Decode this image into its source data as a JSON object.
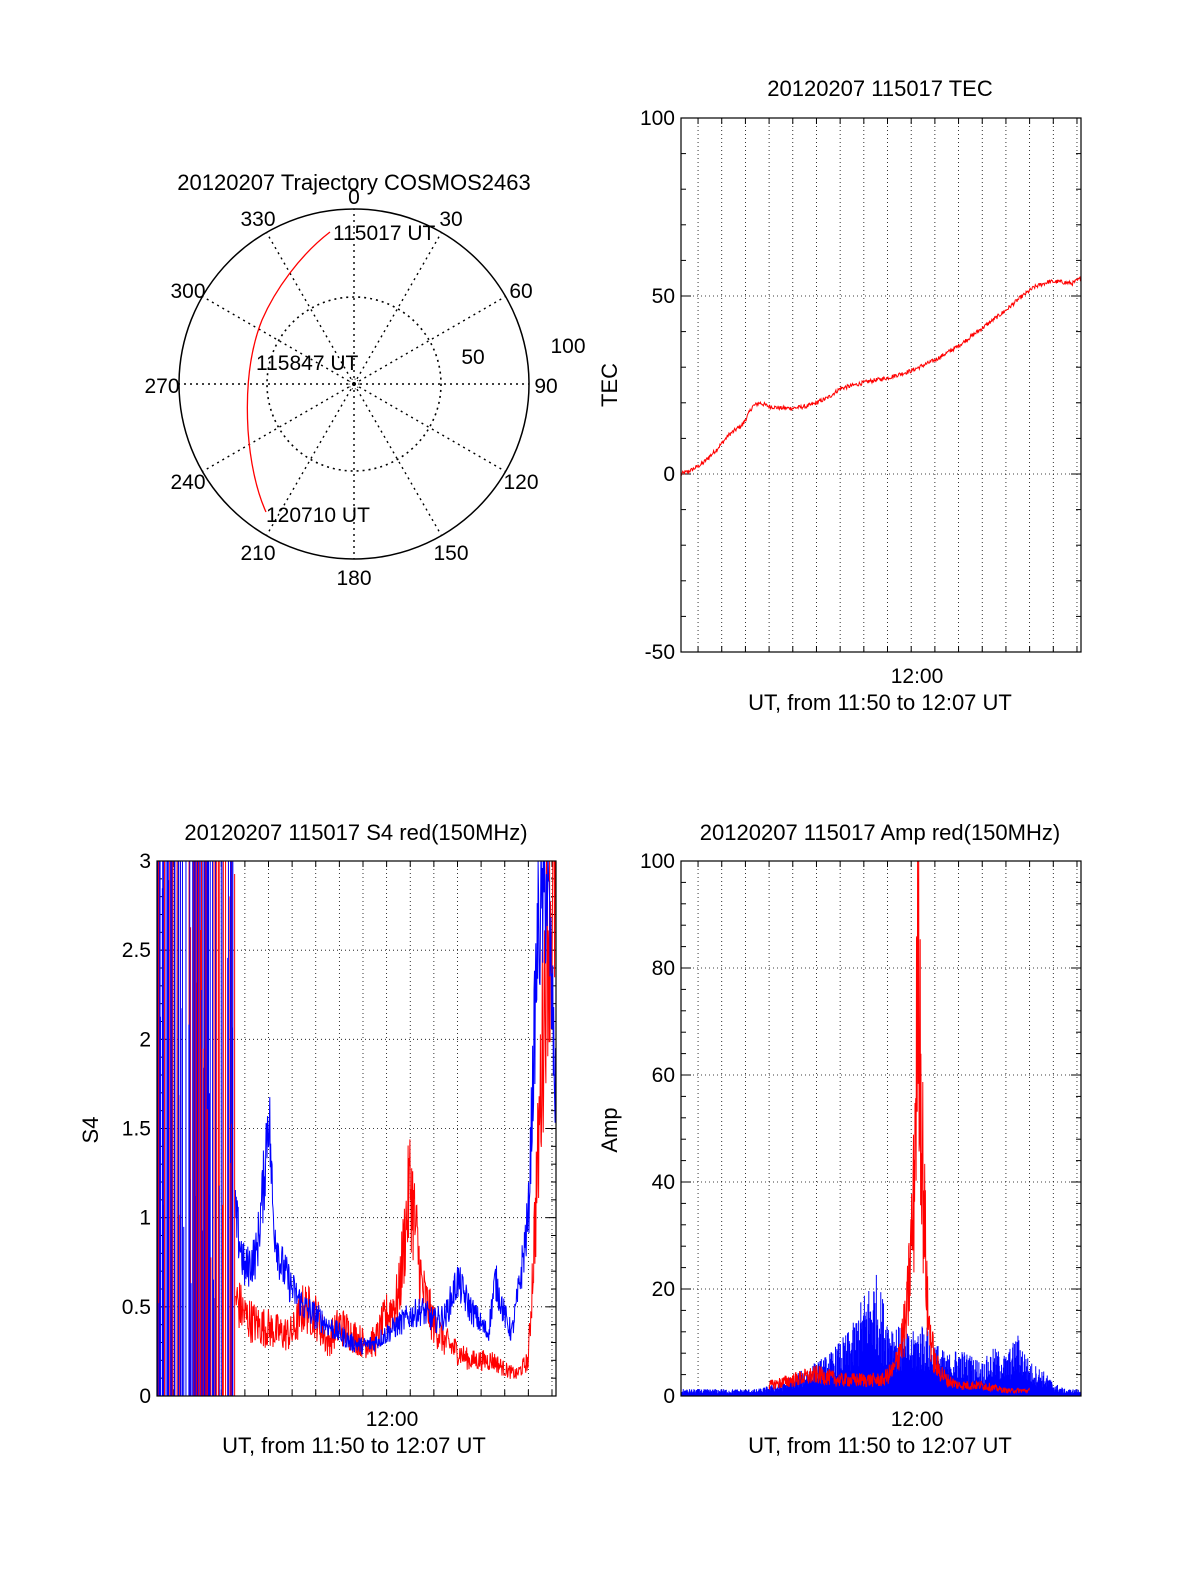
{
  "colors": {
    "red": "#ff0000",
    "blue": "#0000ff",
    "axis": "#000000",
    "grid": "#000000"
  },
  "polar": {
    "title": "20120207 Trajectory COSMOS2463",
    "angle_labels": [
      "0",
      "30",
      "60",
      "90",
      "120",
      "150",
      "180",
      "210",
      "240",
      "270",
      "300",
      "330"
    ],
    "radius_labels": [
      "100",
      "50"
    ],
    "annotations": [
      "115017 UT",
      "115847 UT",
      "120710 UT"
    ]
  },
  "chart_data": [
    {
      "type": "line",
      "title": "20120207 115017 TEC",
      "xlabel": "UT, from 11:50 to 12:07 UT",
      "ylabel": "TEC",
      "xlim": [
        710.28,
        727.17
      ],
      "ylim": [
        -50,
        100
      ],
      "x_tick_labels": [
        {
          "x": 720,
          "label": "12:00"
        }
      ],
      "y_ticks": [
        -50,
        0,
        50,
        100
      ],
      "grid": true,
      "series": [
        {
          "color": "#ff0000",
          "x": [
            710.28,
            710.7,
            711.2,
            711.8,
            712.3,
            712.9,
            713.3,
            713.6,
            714.0,
            714.5,
            715.0,
            715.6,
            716.0,
            716.5,
            717.0,
            717.6,
            718.2,
            719.0,
            720.0,
            721.0,
            722.0,
            723.0,
            724.0,
            724.6,
            725.2,
            725.8,
            726.3,
            726.8,
            727.17
          ],
          "y": [
            0,
            1,
            3,
            7,
            11,
            14,
            19,
            20,
            19,
            18.5,
            18.5,
            19,
            20,
            21.5,
            24,
            25,
            26,
            27,
            29,
            32,
            36,
            41,
            46,
            49.5,
            52.5,
            54,
            54,
            53.5,
            55
          ]
        }
      ]
    },
    {
      "type": "line",
      "title": "20120207 115017 S4 red(150MHz)",
      "xlabel": "UT, from 11:50 to 12:07 UT",
      "ylabel": "S4",
      "xlim": [
        710.28,
        727.17
      ],
      "ylim": [
        0,
        3
      ],
      "x_tick_labels": [
        {
          "x": 720,
          "label": "12:00"
        }
      ],
      "y_ticks": [
        0,
        0.5,
        1,
        1.5,
        2,
        2.5,
        3
      ],
      "y_tick_labels": [
        "0",
        "0.5",
        "1",
        "1.5",
        "2",
        "2.5",
        "3"
      ],
      "grid": true,
      "series": [
        {
          "color": "#0000ff",
          "x": [
            713.6,
            714.0,
            714.5,
            714.8,
            715.0,
            715.2,
            715.5,
            716.0,
            716.5,
            717.0,
            717.5,
            718.0,
            718.5,
            719.0,
            719.5,
            720.0,
            720.5,
            721.0,
            721.5,
            722.0,
            722.5,
            723.0,
            723.5,
            724.0,
            724.3,
            724.6,
            725.0,
            725.3,
            725.6,
            726.0,
            726.4,
            726.8,
            727.17
          ],
          "y": [
            1.0,
            0.7,
            0.8,
            1.2,
            1.65,
            1.0,
            0.75,
            0.6,
            0.5,
            0.45,
            0.4,
            0.35,
            0.3,
            0.28,
            0.3,
            0.35,
            0.4,
            0.45,
            0.48,
            0.42,
            0.45,
            0.65,
            0.5,
            0.4,
            0.35,
            0.65,
            0.45,
            0.35,
            0.6,
            1.0,
            2.6,
            2.9,
            1.6
          ]
        },
        {
          "color": "#ff0000",
          "x": [
            713.6,
            714.0,
            714.5,
            715.0,
            715.5,
            716.0,
            716.5,
            717.0,
            717.5,
            718.0,
            718.5,
            719.0,
            719.5,
            720.0,
            720.5,
            721.0,
            721.5,
            722.0,
            722.5,
            723.0,
            723.5,
            724.0,
            724.5,
            725.0,
            725.5,
            726.0,
            726.4,
            726.8,
            727.17
          ],
          "y": [
            0.55,
            0.45,
            0.4,
            0.38,
            0.35,
            0.35,
            0.5,
            0.45,
            0.3,
            0.4,
            0.35,
            0.3,
            0.3,
            0.45,
            0.55,
            1.2,
            0.6,
            0.4,
            0.3,
            0.25,
            0.2,
            0.2,
            0.2,
            0.15,
            0.12,
            0.2,
            1.3,
            2.7,
            2.9
          ]
        }
      ]
    },
    {
      "type": "line",
      "title": "20120207 115017 Amp red(150MHz)",
      "xlabel": "UT, from 11:50 to 12:07 UT",
      "ylabel": "Amp",
      "xlim": [
        710.28,
        727.17
      ],
      "ylim": [
        0,
        100
      ],
      "x_tick_labels": [
        {
          "x": 720,
          "label": "12:00"
        }
      ],
      "y_ticks": [
        0,
        20,
        40,
        60,
        80,
        100
      ],
      "grid": true,
      "series": [
        {
          "color": "#0000ff",
          "x": [
            710.3,
            711.5,
            712.5,
            713.5,
            714.5,
            715.5,
            716.5,
            717.5,
            718.0,
            718.5,
            719.0,
            719.5,
            720.0,
            720.5,
            721.0,
            721.5,
            722.0,
            722.5,
            723.0,
            723.5,
            724.0,
            724.5,
            725.0,
            725.5,
            726.0,
            726.5,
            727.17
          ],
          "y": [
            1,
            1,
            1,
            1,
            2,
            4,
            6,
            10,
            15,
            18,
            12,
            10,
            9,
            11,
            8,
            6,
            7,
            6,
            5,
            7,
            6,
            9,
            5,
            4,
            2,
            1,
            1
          ]
        },
        {
          "color": "#ff0000",
          "x": [
            714.0,
            715.0,
            716.0,
            717.0,
            718.0,
            718.8,
            719.3,
            719.8,
            720.1,
            720.3,
            720.5,
            720.7,
            721.0,
            721.5,
            722.0,
            723.0,
            724.0,
            725.0
          ],
          "y": [
            2,
            3,
            4,
            3,
            3,
            3,
            5,
            14,
            35,
            85,
            40,
            15,
            6,
            3,
            2,
            2,
            1,
            1
          ]
        }
      ]
    }
  ]
}
